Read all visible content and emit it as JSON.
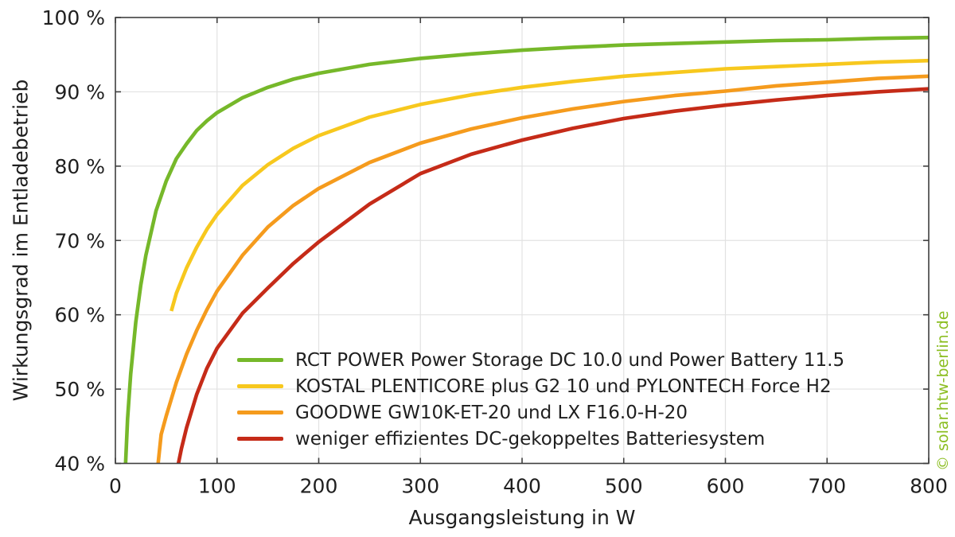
{
  "watermark": "© solar.htw-berlin.de",
  "colors": {
    "grid": "#e2e2e2",
    "axis": "#3f3f3f",
    "text": "#1f1f1f",
    "watermark": "#8cbe22",
    "background": "#ffffff"
  },
  "chart_data": {
    "type": "line",
    "title": "",
    "xlabel": "Ausgangsleistung in W",
    "ylabel": "Wirkungsgrad im Entladebetrieb",
    "xlim": [
      0,
      800
    ],
    "ylim": [
      40,
      100
    ],
    "xticks": [
      0,
      100,
      200,
      300,
      400,
      500,
      600,
      700,
      800
    ],
    "xtick_labels": [
      "0",
      "100",
      "200",
      "300",
      "400",
      "500",
      "600",
      "700",
      "800"
    ],
    "yticks": [
      40,
      50,
      60,
      70,
      80,
      90,
      100
    ],
    "ytick_labels": [
      "40 %",
      "50 %",
      "60 %",
      "70 %",
      "80 %",
      "90 %",
      "100 %"
    ],
    "grid": true,
    "legend_position": "inside lower-left, no frame",
    "series": [
      {
        "name": "RCT POWER Power Storage DC 10.0 und Power Battery 11.5",
        "color": "#76b82a",
        "points": [
          [
            10,
            40
          ],
          [
            12,
            46
          ],
          [
            15,
            52
          ],
          [
            20,
            59
          ],
          [
            25,
            64
          ],
          [
            30,
            68
          ],
          [
            40,
            74
          ],
          [
            50,
            78
          ],
          [
            60,
            81
          ],
          [
            70,
            83
          ],
          [
            80,
            84.8
          ],
          [
            90,
            86.1
          ],
          [
            100,
            87.2
          ],
          [
            125,
            89.2
          ],
          [
            150,
            90.6
          ],
          [
            175,
            91.7
          ],
          [
            200,
            92.5
          ],
          [
            250,
            93.7
          ],
          [
            300,
            94.5
          ],
          [
            350,
            95.1
          ],
          [
            400,
            95.6
          ],
          [
            450,
            96
          ],
          [
            500,
            96.3
          ],
          [
            550,
            96.5
          ],
          [
            600,
            96.7
          ],
          [
            650,
            96.9
          ],
          [
            700,
            97
          ],
          [
            750,
            97.2
          ],
          [
            800,
            97.3
          ]
        ]
      },
      {
        "name": "KOSTAL PLENTICORE plus G2 10 und PYLONTECH Force H2",
        "color": "#f7c81e",
        "points": [
          [
            55,
            60.5
          ],
          [
            60,
            62.9
          ],
          [
            70,
            66.3
          ],
          [
            80,
            69.1
          ],
          [
            90,
            71.5
          ],
          [
            100,
            73.5
          ],
          [
            125,
            77.4
          ],
          [
            150,
            80.2
          ],
          [
            175,
            82.4
          ],
          [
            200,
            84.1
          ],
          [
            250,
            86.6
          ],
          [
            300,
            88.3
          ],
          [
            350,
            89.6
          ],
          [
            400,
            90.6
          ],
          [
            450,
            91.4
          ],
          [
            500,
            92.1
          ],
          [
            550,
            92.6
          ],
          [
            600,
            93.1
          ],
          [
            650,
            93.4
          ],
          [
            700,
            93.7
          ],
          [
            750,
            94
          ],
          [
            800,
            94.2
          ]
        ]
      },
      {
        "name": "GOODWE GW10K-ET-20 und LX F16.0-H-20",
        "color": "#f59b1d",
        "points": [
          [
            42,
            40
          ],
          [
            45,
            43.9
          ],
          [
            50,
            46.4
          ],
          [
            60,
            50.9
          ],
          [
            70,
            54.7
          ],
          [
            80,
            57.9
          ],
          [
            90,
            60.7
          ],
          [
            100,
            63.2
          ],
          [
            125,
            68
          ],
          [
            150,
            71.8
          ],
          [
            175,
            74.7
          ],
          [
            200,
            77
          ],
          [
            250,
            80.5
          ],
          [
            300,
            83.1
          ],
          [
            350,
            85
          ],
          [
            400,
            86.5
          ],
          [
            450,
            87.7
          ],
          [
            500,
            88.7
          ],
          [
            550,
            89.5
          ],
          [
            600,
            90.1
          ],
          [
            650,
            90.8
          ],
          [
            700,
            91.3
          ],
          [
            750,
            91.8
          ],
          [
            800,
            92.1
          ]
        ]
      },
      {
        "name": "weniger effizientes DC-gekoppeltes Batteriesystem",
        "color": "#c52b18",
        "points": [
          [
            62,
            40
          ],
          [
            65,
            42
          ],
          [
            70,
            44.8
          ],
          [
            80,
            49.3
          ],
          [
            90,
            52.8
          ],
          [
            100,
            55.5
          ],
          [
            125,
            60.2
          ],
          [
            150,
            63.6
          ],
          [
            175,
            66.9
          ],
          [
            200,
            69.8
          ],
          [
            250,
            74.9
          ],
          [
            300,
            79
          ],
          [
            350,
            81.6
          ],
          [
            400,
            83.5
          ],
          [
            450,
            85.1
          ],
          [
            500,
            86.4
          ],
          [
            550,
            87.4
          ],
          [
            600,
            88.2
          ],
          [
            650,
            88.9
          ],
          [
            700,
            89.5
          ],
          [
            750,
            90
          ],
          [
            800,
            90.4
          ]
        ]
      }
    ]
  }
}
